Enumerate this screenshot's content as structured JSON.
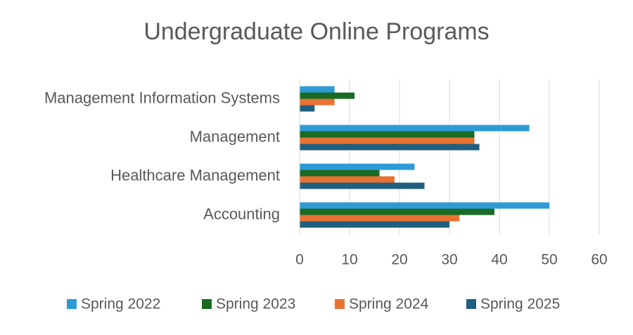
{
  "chart_data": {
    "type": "bar",
    "orientation": "horizontal",
    "title": "Undergraduate Online Programs",
    "categories": [
      "Management Information Systems",
      "Management",
      "Healthcare Management",
      "Accounting"
    ],
    "series": [
      {
        "name": "Spring 2022",
        "color": "#2e9bd6",
        "values": [
          7,
          46,
          23,
          50
        ]
      },
      {
        "name": "Spring 2023",
        "color": "#196b24",
        "values": [
          11,
          35,
          16,
          39
        ]
      },
      {
        "name": "Spring 2024",
        "color": "#e97132",
        "values": [
          7,
          35,
          19,
          32
        ]
      },
      {
        "name": "Spring 2025",
        "color": "#1f5f80",
        "values": [
          3,
          36,
          25,
          30
        ]
      }
    ],
    "xlim": [
      0,
      60
    ],
    "xticks": [
      0,
      10,
      20,
      30,
      40,
      50,
      60
    ],
    "grid": true,
    "legend": "bottom"
  }
}
